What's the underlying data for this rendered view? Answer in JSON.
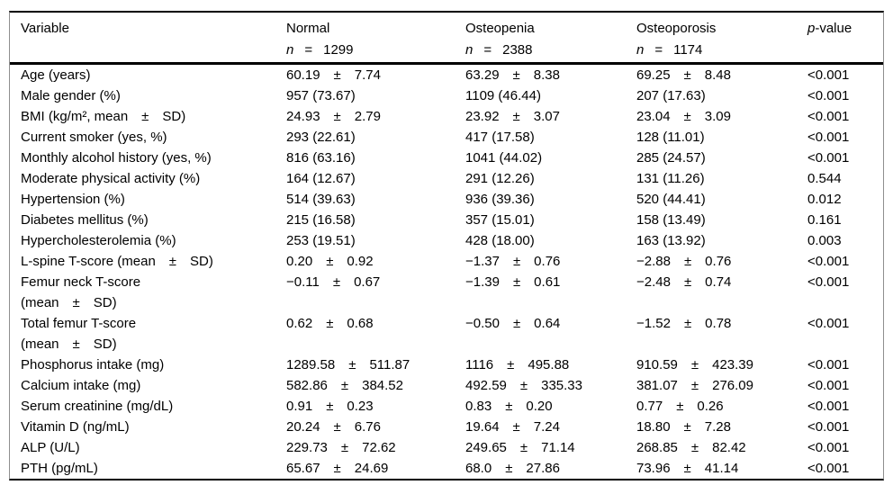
{
  "table": {
    "header": {
      "variable": "Variable",
      "n_label": "n",
      "eq": "=",
      "groups": [
        {
          "label": "Normal",
          "n": "1299"
        },
        {
          "label": "Osteopenia",
          "n": "2388"
        },
        {
          "label": "Osteoporosis",
          "n": "1174"
        }
      ],
      "p_italic": "p",
      "p_rest": "-value"
    },
    "rows": [
      {
        "variable": "Age (years)",
        "values": [
          "60.19 ± 7.74",
          "63.29 ± 8.38",
          "69.25 ± 8.48"
        ],
        "p": "<0.001"
      },
      {
        "variable": "Male gender (%)",
        "values": [
          "957 (73.67)",
          "1109 (46.44)",
          "207 (17.63)"
        ],
        "p": "<0.001"
      },
      {
        "variable": "BMI (kg/m², mean ± SD)",
        "values": [
          "24.93 ± 2.79",
          "23.92 ± 3.07",
          "23.04 ± 3.09"
        ],
        "p": "<0.001"
      },
      {
        "variable": "Current smoker (yes, %)",
        "values": [
          "293 (22.61)",
          "417 (17.58)",
          "128 (11.01)"
        ],
        "p": "<0.001"
      },
      {
        "variable": "Monthly alcohol history (yes, %)",
        "values": [
          "816 (63.16)",
          "1041 (44.02)",
          "285 (24.57)"
        ],
        "p": "<0.001"
      },
      {
        "variable": "Moderate physical activity (%)",
        "values": [
          "164 (12.67)",
          "291 (12.26)",
          "131 (11.26)"
        ],
        "p": "0.544"
      },
      {
        "variable": "Hypertension (%)",
        "values": [
          "514 (39.63)",
          "936 (39.36)",
          "520 (44.41)"
        ],
        "p": "0.012"
      },
      {
        "variable": "Diabetes mellitus (%)",
        "values": [
          "215 (16.58)",
          "357 (15.01)",
          "158 (13.49)"
        ],
        "p": "0.161"
      },
      {
        "variable": "Hypercholesterolemia (%)",
        "values": [
          "253 (19.51)",
          "428 (18.00)",
          "163 (13.92)"
        ],
        "p": "0.003"
      },
      {
        "variable": "L-spine T-score (mean ± SD)",
        "values": [
          "0.20 ± 0.92",
          "−1.37 ± 0.76",
          "−2.88 ± 0.76"
        ],
        "p": "<0.001"
      },
      {
        "variable": "Femur neck T-score\n(mean ± SD)",
        "values": [
          "−0.11 ± 0.67",
          "−1.39 ± 0.61",
          "−2.48 ± 0.74"
        ],
        "p": "<0.001"
      },
      {
        "variable": "Total femur T-score\n(mean ± SD)",
        "values": [
          "0.62 ± 0.68",
          "−0.50 ± 0.64",
          "−1.52 ± 0.78"
        ],
        "p": "<0.001"
      },
      {
        "variable": "Phosphorus intake (mg)",
        "values": [
          "1289.58 ± 511.87",
          "1116 ± 495.88",
          "910.59 ± 423.39"
        ],
        "p": "<0.001"
      },
      {
        "variable": "Calcium intake (mg)",
        "values": [
          "582.86 ± 384.52",
          "492.59 ± 335.33",
          "381.07 ± 276.09"
        ],
        "p": "<0.001"
      },
      {
        "variable": "Serum creatinine (mg/dL)",
        "values": [
          "0.91 ± 0.23",
          "0.83 ± 0.20",
          "0.77 ± 0.26"
        ],
        "p": "<0.001"
      },
      {
        "variable": "Vitamin D (ng/mL)",
        "values": [
          "20.24 ± 6.76",
          "19.64 ± 7.24",
          "18.80 ± 7.28"
        ],
        "p": "<0.001"
      },
      {
        "variable": "ALP (U/L)",
        "values": [
          "229.73 ± 72.62",
          "249.65 ± 71.14",
          "268.85 ± 82.42"
        ],
        "p": "<0.001"
      },
      {
        "variable": "PTH (pg/mL)",
        "values": [
          "65.67 ± 24.69",
          "68.0 ± 27.86",
          "73.96 ± 41.14"
        ],
        "p": "<0.001"
      }
    ]
  }
}
